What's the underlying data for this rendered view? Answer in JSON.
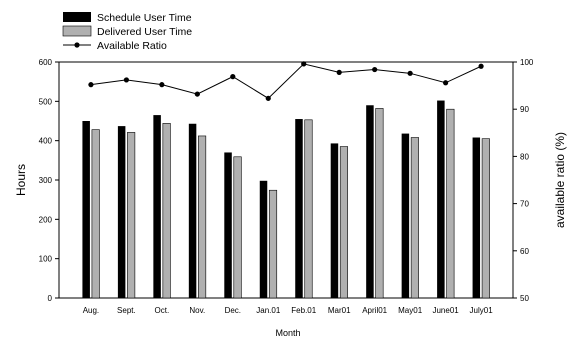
{
  "chart_data": {
    "type": "bar",
    "categories": [
      "Aug.",
      "Sept.",
      "Oct.",
      "Nov.",
      "Dec.",
      "Jan.01",
      "Feb.01",
      "Mar01",
      "April01",
      "May01",
      "June01",
      "July01"
    ],
    "series": [
      {
        "name": "Schedule User Time",
        "type": "bar",
        "axis": "left",
        "color": "#000000",
        "values": [
          450,
          437,
          465,
          443,
          370,
          298,
          455,
          393,
          490,
          418,
          502,
          408
        ]
      },
      {
        "name": "Delivered User Time",
        "type": "bar",
        "axis": "left",
        "color": "#b0b0b0",
        "values": [
          428,
          421,
          444,
          412,
          359,
          274,
          453,
          385,
          482,
          408,
          480,
          405
        ]
      },
      {
        "name": "Available Ratio",
        "type": "line",
        "axis": "right",
        "color": "#000000",
        "values": [
          95.2,
          96.2,
          95.2,
          93.2,
          96.9,
          92.3,
          99.6,
          97.8,
          98.4,
          97.6,
          95.6,
          99.1
        ]
      }
    ],
    "xlabel": "Month",
    "ylabel": "Hours",
    "y2label": "available ratio (%)",
    "ylim": [
      0,
      600
    ],
    "y2lim": [
      50,
      100
    ],
    "yticks": [
      "0",
      "100",
      "200",
      "300",
      "400",
      "500",
      "600"
    ],
    "y2ticks": [
      "50",
      "60",
      "70",
      "80",
      "90",
      "100"
    ],
    "grid": false,
    "legend_position": "top-left-outside"
  }
}
